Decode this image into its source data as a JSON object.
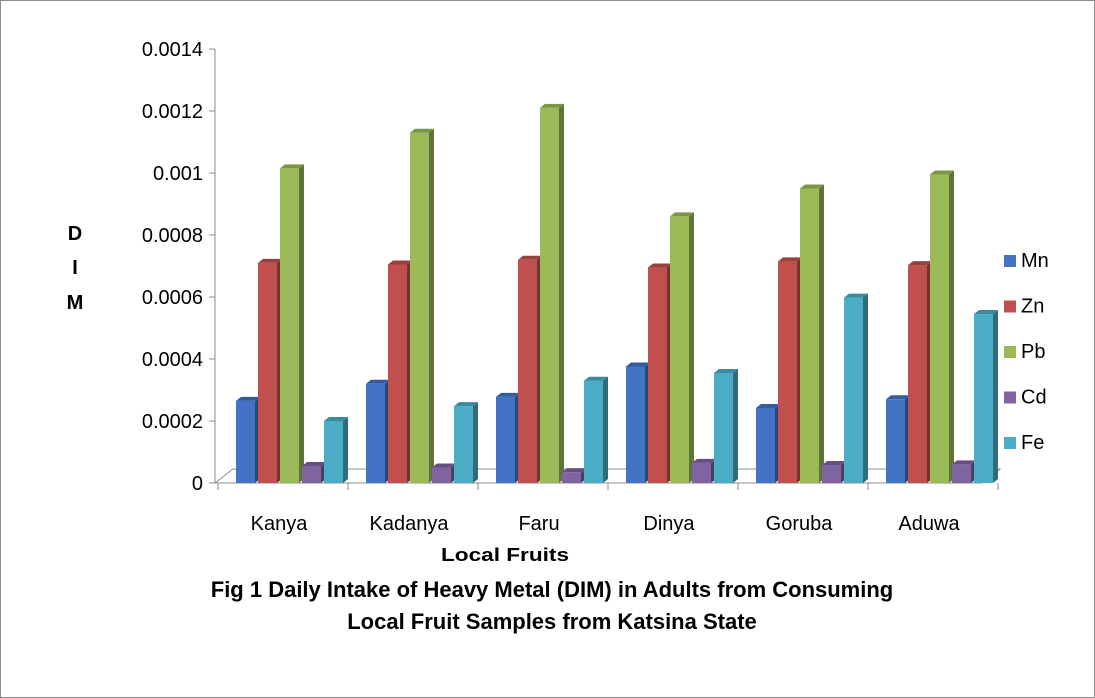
{
  "chart_data": {
    "type": "bar",
    "categories": [
      "Kanya",
      "Kadanya",
      "Faru",
      "Dinya",
      "Goruba",
      "Aduwa"
    ],
    "series": [
      {
        "name": "Mn",
        "color": "#4472C4",
        "values": [
          0.000265,
          0.00032,
          0.000278,
          0.000376,
          0.000242,
          0.00027
        ]
      },
      {
        "name": "Zn",
        "color": "#C0504D",
        "values": [
          0.00071,
          0.000705,
          0.00072,
          0.000695,
          0.000715,
          0.000703
        ]
      },
      {
        "name": "Pb",
        "color": "#9BBB59",
        "values": [
          0.001015,
          0.00113,
          0.00121,
          0.00086,
          0.00095,
          0.000995
        ]
      },
      {
        "name": "Cd",
        "color": "#8064A2",
        "values": [
          5.5e-05,
          5e-05,
          3.5e-05,
          6.5e-05,
          5.8e-05,
          6e-05
        ]
      },
      {
        "name": "Fe",
        "color": "#4BACC6",
        "values": [
          0.0002,
          0.000248,
          0.00033,
          0.000355,
          0.000598,
          0.000545
        ]
      }
    ],
    "yticks": [
      "0",
      "0.0002",
      "0.0004",
      "0.0006",
      "0.0008",
      "0.001",
      "0.0012",
      "0.0014"
    ],
    "ylim": [
      0,
      0.0014
    ],
    "ylabel_lines": [
      "D",
      "I",
      "M"
    ],
    "xlabel": "Local Fruits",
    "caption_lines": [
      "Fig 1 Daily Intake of Heavy Metal (DIM) in Adults from Consuming",
      "Local Fruit Samples from Katsina State"
    ],
    "legend_position": "right",
    "grid": false
  }
}
